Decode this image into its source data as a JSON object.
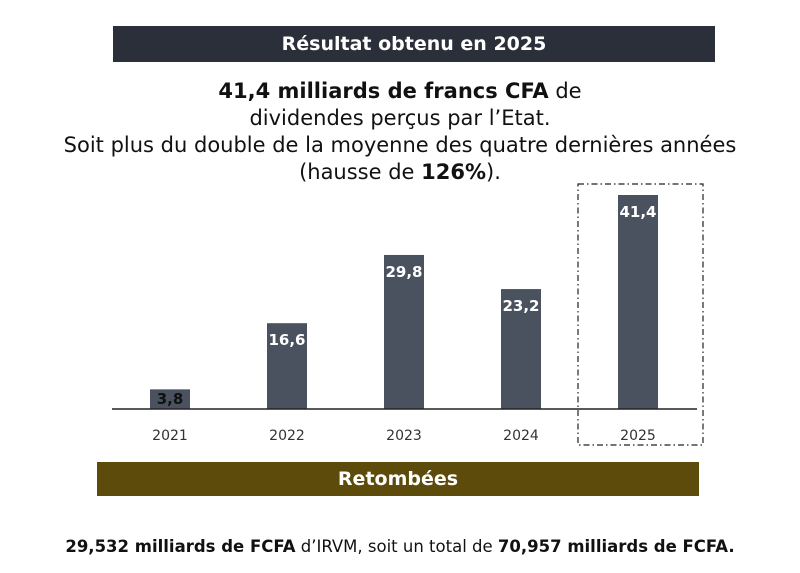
{
  "top_banner": "Résultat obtenu en 2025",
  "headline": {
    "line1_bold": "41,4 milliards de francs CFA",
    "line1_rest": " de dividendes perçus par l’Etat.",
    "line2_pre": "Soit plus du double de la moyenne des quatre dernières années (hausse de ",
    "line2_bold": "126%",
    "line2_post": ")."
  },
  "chart_data": {
    "type": "bar",
    "categories": [
      "2021",
      "2022",
      "2023",
      "2024",
      "2025"
    ],
    "values": [
      3.8,
      16.6,
      29.8,
      23.2,
      41.4
    ],
    "value_labels": [
      "3,8",
      "16,6",
      "29,8",
      "23,2",
      "41,4"
    ],
    "highlighted_category": "2025",
    "bar_color": "#4a5260",
    "ylim": [
      0,
      41.4
    ],
    "title": "",
    "xlabel": "",
    "ylabel": "",
    "grid": false
  },
  "bottom_banner": "Retombées",
  "footer": {
    "part1_bold": "29,532 milliards de FCFA",
    "part2": " d’IRVM, soit un total de ",
    "part3_bold": "70,957 milliards de FCFA."
  }
}
